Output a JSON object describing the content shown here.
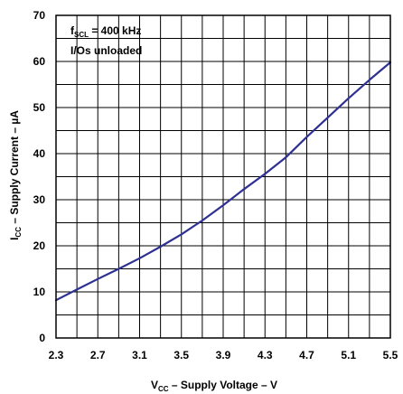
{
  "chart_data": {
    "type": "line",
    "x_ticks": [
      "2.3",
      "2.7",
      "3.1",
      "3.5",
      "3.9",
      "4.3",
      "4.7",
      "5.1",
      "5.5"
    ],
    "y_ticks": [
      "0",
      "10",
      "20",
      "30",
      "40",
      "50",
      "60",
      "70"
    ],
    "xlim": [
      2.3,
      5.5
    ],
    "ylim": [
      0,
      70
    ],
    "x_step": 0.2,
    "y_step": 5,
    "xlabel": {
      "main": "V",
      "sub": "CC",
      "rest": " – Supply Voltage – V"
    },
    "ylabel": {
      "main": "I",
      "sub": "CC",
      "rest": " – Supply Current – µA"
    },
    "annotations": [
      {
        "main": "f",
        "sub": "SCL",
        "rest": " = 400 kHz"
      },
      {
        "main": "I/Os unloaded",
        "sub": "",
        "rest": ""
      }
    ],
    "grid": true,
    "line_color": "#2e3192",
    "series": [
      {
        "x": [
          2.3,
          2.5,
          2.7,
          2.9,
          3.1,
          3.3,
          3.5,
          3.7,
          3.9,
          4.1,
          4.3,
          4.5,
          4.7,
          4.9,
          5.1,
          5.3,
          5.5
        ],
        "y": [
          8.2,
          10.5,
          12.8,
          15.0,
          17.3,
          19.8,
          22.5,
          25.5,
          28.8,
          32.3,
          35.6,
          39.2,
          43.6,
          47.8,
          52.0,
          56.0,
          59.8
        ]
      }
    ]
  }
}
